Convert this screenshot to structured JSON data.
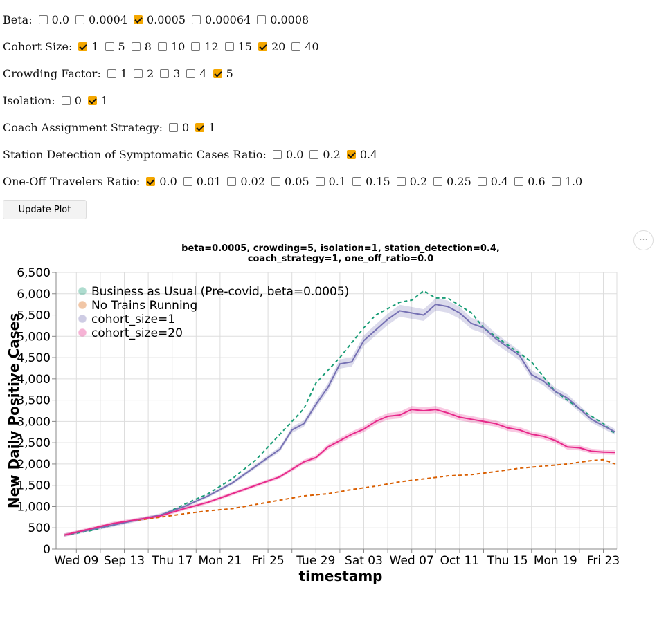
{
  "filters": [
    {
      "label": "Beta:",
      "options": [
        {
          "v": "0.0",
          "c": false
        },
        {
          "v": "0.0004",
          "c": false
        },
        {
          "v": "0.0005",
          "c": true
        },
        {
          "v": "0.00064",
          "c": false
        },
        {
          "v": "0.0008",
          "c": false
        }
      ]
    },
    {
      "label": "Cohort Size:",
      "options": [
        {
          "v": "1",
          "c": true
        },
        {
          "v": "5",
          "c": false
        },
        {
          "v": "8",
          "c": false
        },
        {
          "v": "10",
          "c": false
        },
        {
          "v": "12",
          "c": false
        },
        {
          "v": "15",
          "c": false
        },
        {
          "v": "20",
          "c": true
        },
        {
          "v": "40",
          "c": false
        }
      ]
    },
    {
      "label": "Crowding Factor:",
      "options": [
        {
          "v": "1",
          "c": false
        },
        {
          "v": "2",
          "c": false
        },
        {
          "v": "3",
          "c": false
        },
        {
          "v": "4",
          "c": false
        },
        {
          "v": "5",
          "c": true
        }
      ]
    },
    {
      "label": "Isolation:",
      "options": [
        {
          "v": "0",
          "c": false
        },
        {
          "v": "1",
          "c": true
        }
      ]
    },
    {
      "label": "Coach Assignment Strategy:",
      "options": [
        {
          "v": "0",
          "c": false
        },
        {
          "v": "1",
          "c": true
        }
      ]
    },
    {
      "label": "Station Detection of Symptomatic Cases Ratio:",
      "options": [
        {
          "v": "0.0",
          "c": false
        },
        {
          "v": "0.2",
          "c": false
        },
        {
          "v": "0.4",
          "c": true
        }
      ]
    },
    {
      "label": "One-Off Travelers Ratio:",
      "options": [
        {
          "v": "0.0",
          "c": true
        },
        {
          "v": "0.01",
          "c": false
        },
        {
          "v": "0.02",
          "c": false
        },
        {
          "v": "0.05",
          "c": false
        },
        {
          "v": "0.1",
          "c": false
        },
        {
          "v": "0.15",
          "c": false
        },
        {
          "v": "0.2",
          "c": false
        },
        {
          "v": "0.25",
          "c": false
        },
        {
          "v": "0.4",
          "c": false
        },
        {
          "v": "0.6",
          "c": false
        },
        {
          "v": "1.0",
          "c": false
        }
      ]
    }
  ],
  "update_button": "Update Plot",
  "more_icon": "⋯",
  "chart_data": {
    "type": "line",
    "title": [
      "beta=0.0005, crowding=5, isolation=1, station_detection=0.4,",
      "coach_strategy=1, one_off_ratio=0.0"
    ],
    "xlabel": "timestamp",
    "ylabel": "New Daily Positive Cases",
    "ylim": [
      0,
      6500
    ],
    "yticks": [
      "0",
      "500",
      "1,000",
      "1,500",
      "2,000",
      "2,500",
      "3,000",
      "3,500",
      "4,000",
      "4,500",
      "5,000",
      "5,500",
      "6,000",
      "6,500"
    ],
    "x_unit": "days since Tue Sep 08",
    "xlim": [
      0,
      46.5
    ],
    "xticks": [
      {
        "d": 1,
        "label": "Wed 09"
      },
      {
        "d": 5,
        "label": "Sep 13"
      },
      {
        "d": 9,
        "label": "Thu 17"
      },
      {
        "d": 13,
        "label": "Mon 21"
      },
      {
        "d": 17,
        "label": "Fri 25"
      },
      {
        "d": 21,
        "label": "Tue 29"
      },
      {
        "d": 25,
        "label": "Sat 03"
      },
      {
        "d": 29,
        "label": "Wed 07"
      },
      {
        "d": 33,
        "label": "Oct 11"
      },
      {
        "d": 37,
        "label": "Thu 15"
      },
      {
        "d": 41,
        "label": "Mon 19"
      },
      {
        "d": 45,
        "label": "Fri 23"
      }
    ],
    "legend_position": "top-left",
    "series": [
      {
        "name": "Business as Usual (Pre-covid, beta=0.0005)",
        "color": "#1b9e77",
        "dash": true,
        "band": false,
        "x": [
          0,
          2,
          4,
          6,
          8,
          10,
          12,
          14,
          16,
          18,
          20,
          21,
          23,
          25,
          26,
          28,
          29,
          30,
          31,
          32,
          34,
          35,
          37,
          39,
          41,
          43,
          45,
          46
        ],
        "y": [
          330,
          420,
          560,
          690,
          780,
          1050,
          1300,
          1650,
          2100,
          2700,
          3300,
          3900,
          4500,
          5200,
          5500,
          5800,
          5850,
          6070,
          5900,
          5900,
          5550,
          5200,
          4800,
          4400,
          3700,
          3300,
          2950,
          2700
        ]
      },
      {
        "name": "No Trains Running",
        "color": "#d95f02",
        "dash": true,
        "band": false,
        "x": [
          0,
          4,
          8,
          10,
          12,
          14,
          16,
          18,
          20,
          22,
          24,
          26,
          28,
          30,
          32,
          34,
          36,
          38,
          40,
          42,
          44,
          45,
          46
        ],
        "y": [
          330,
          600,
          750,
          830,
          900,
          950,
          1050,
          1150,
          1250,
          1300,
          1400,
          1480,
          1580,
          1650,
          1720,
          1750,
          1820,
          1900,
          1950,
          2000,
          2080,
          2100,
          2000
        ]
      },
      {
        "name": "cohort_size=1",
        "color": "#7570b3",
        "dash": false,
        "band": true,
        "x": [
          0,
          4,
          8,
          10,
          12,
          14,
          16,
          18,
          19,
          20,
          21,
          22,
          23,
          24,
          25,
          26,
          27,
          28,
          29,
          30,
          31,
          32,
          33,
          34,
          35,
          36,
          37,
          38,
          39,
          40,
          41,
          42,
          43,
          44,
          45,
          46
        ],
        "y": [
          330,
          560,
          800,
          1000,
          1250,
          1550,
          1950,
          2350,
          2800,
          2950,
          3400,
          3800,
          4350,
          4400,
          4900,
          5150,
          5400,
          5600,
          5550,
          5500,
          5750,
          5700,
          5550,
          5300,
          5200,
          4950,
          4750,
          4550,
          4100,
          3950,
          3700,
          3550,
          3300,
          3050,
          2900,
          2750
        ]
      },
      {
        "name": "cohort_size=20",
        "color": "#e7298a",
        "dash": false,
        "band": true,
        "x": [
          0,
          4,
          8,
          10,
          12,
          14,
          16,
          18,
          20,
          21,
          22,
          23,
          24,
          25,
          26,
          27,
          28,
          29,
          30,
          31,
          32,
          33,
          34,
          35,
          36,
          37,
          38,
          39,
          40,
          41,
          42,
          43,
          44,
          45,
          46
        ],
        "y": [
          330,
          600,
          780,
          950,
          1100,
          1300,
          1500,
          1700,
          2050,
          2150,
          2400,
          2550,
          2700,
          2820,
          3000,
          3120,
          3150,
          3280,
          3250,
          3280,
          3200,
          3100,
          3050,
          3000,
          2950,
          2850,
          2800,
          2700,
          2650,
          2550,
          2400,
          2380,
          2300,
          2280,
          2270
        ]
      }
    ]
  }
}
